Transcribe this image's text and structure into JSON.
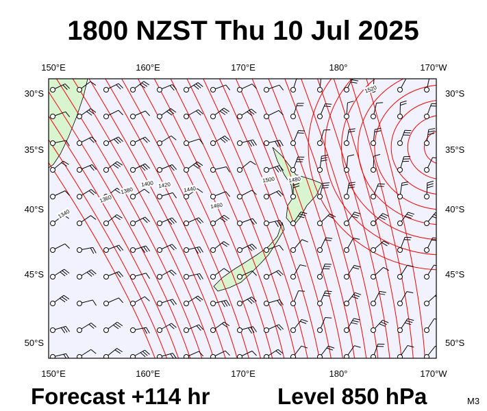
{
  "header": {
    "title": "1800 NZST Thu 10 Jul 2025"
  },
  "map": {
    "lon_labels": [
      "150°E",
      "160°E",
      "170°E",
      "180°",
      "170°W"
    ],
    "lat_labels": [
      "30°S",
      "35°S",
      "40°S",
      "45°S",
      "50°S"
    ],
    "contour_labels": [
      "1520",
      "1500",
      "1480",
      "1460",
      "1440",
      "1420",
      "1400",
      "1380",
      "1360",
      "1340"
    ]
  },
  "footer": {
    "forecast": "Forecast +114 hr",
    "level": "Level 850 hPa",
    "model": "M3"
  }
}
